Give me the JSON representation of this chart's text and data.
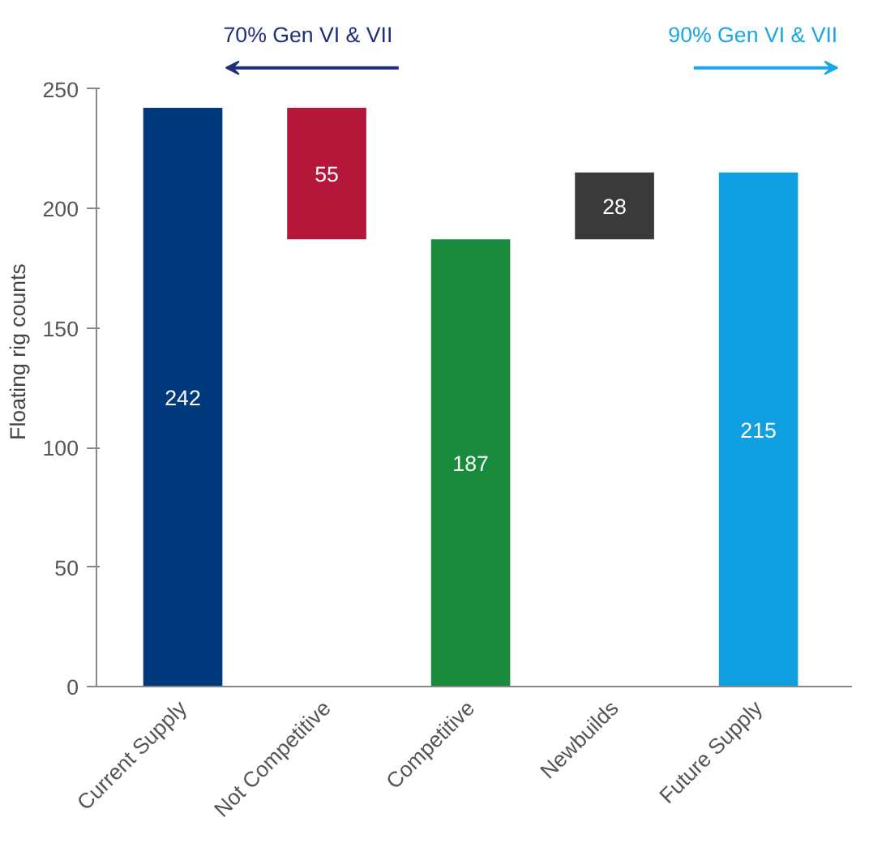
{
  "chart_data": {
    "type": "bar",
    "ylabel": "Floating rig counts",
    "categories": [
      "Current Supply",
      "Not Competitive",
      "Competitive",
      "Newbuilds",
      "Future Supply"
    ],
    "values": [
      242,
      55,
      187,
      28,
      215
    ],
    "base": [
      0,
      187,
      0,
      187,
      0
    ],
    "colors": [
      "#003a7d",
      "#b5173a",
      "#1a8a3c",
      "#3a3a3a",
      "#109fe0"
    ],
    "ylim": [
      0,
      250
    ],
    "yticks": [
      0,
      50,
      100,
      150,
      200,
      250
    ],
    "grid": false,
    "data_labels": true,
    "annotations": [
      "70%  Gen VI & VII",
      "90% Gen VI & VII"
    ]
  }
}
